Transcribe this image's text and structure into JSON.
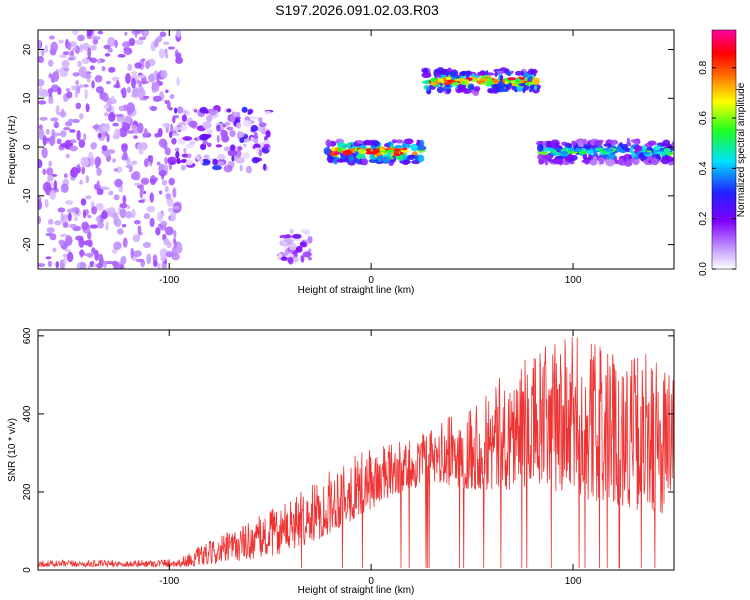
{
  "title": "S197.2026.091.02.03.R03",
  "chart_data": [
    {
      "type": "heatmap",
      "xlabel": "Height of straight line (km)",
      "ylabel": "Frequency (Hz)",
      "xlim": [
        -165,
        150
      ],
      "ylim": [
        -25,
        24
      ],
      "xticks": [
        -100,
        0,
        100
      ],
      "yticks": [
        -20,
        -10,
        0,
        10,
        20
      ],
      "colorbar": {
        "label": "Normalized spectral amplitude",
        "range": [
          0,
          0.95
        ],
        "ticks": [
          "0.0",
          "0.2",
          "0.4",
          "0.6",
          "0.8"
        ],
        "colormap": "purple-blue-cyan-green-yellow-red-magenta"
      },
      "features": [
        {
          "x_range": [
            -165,
            -95
          ],
          "freq_range": [
            -25,
            24
          ],
          "max_amplitude": 0.15,
          "note": "scattered noise"
        },
        {
          "x_range": [
            -100,
            -50
          ],
          "freq_range": [
            -5,
            8
          ],
          "max_amplitude": 0.35
        },
        {
          "x_range": [
            -45,
            -30
          ],
          "freq_range": [
            -24,
            -17
          ],
          "max_amplitude": 0.3
        },
        {
          "x_range": [
            -22,
            25
          ],
          "freq_range": [
            -3,
            3
          ],
          "center_freq": -1,
          "max_amplitude": 0.95
        },
        {
          "x_range": [
            27,
            82
          ],
          "freq_range": [
            11,
            17
          ],
          "center_freq": 13.5,
          "max_amplitude": 0.9
        },
        {
          "x_range": [
            83,
            150
          ],
          "freq_range": [
            -3,
            3
          ],
          "center_freq": -1,
          "max_amplitude": 0.6
        }
      ]
    },
    {
      "type": "line",
      "xlabel": "Height of straight line (km)",
      "ylabel": "SNR (10 * v/v)",
      "xlim": [
        -165,
        150
      ],
      "ylim": [
        0,
        615
      ],
      "xticks": [
        -100,
        0,
        100
      ],
      "yticks": [
        0,
        200,
        400,
        600
      ],
      "series": [
        {
          "color": "#ee3333",
          "envelope": {
            "x": [
              -165,
              -120,
              -95,
              -85,
              -70,
              -55,
              -45,
              -35,
              -25,
              -15,
              -5,
              5,
              15,
              30,
              45,
              60,
              75,
              90,
              105,
              120,
              135,
              150
            ],
            "y_low": [
              8,
              8,
              8,
              10,
              20,
              30,
              40,
              60,
              80,
              110,
              140,
              170,
              200,
              220,
              210,
              200,
              210,
              200,
              180,
              170,
              150,
              140
            ],
            "y_high": [
              25,
              25,
              30,
              60,
              100,
              140,
              170,
              200,
              230,
              290,
              300,
              320,
              330,
              360,
              420,
              480,
              540,
              590,
              610,
              560,
              560,
              530
            ]
          }
        }
      ]
    }
  ]
}
